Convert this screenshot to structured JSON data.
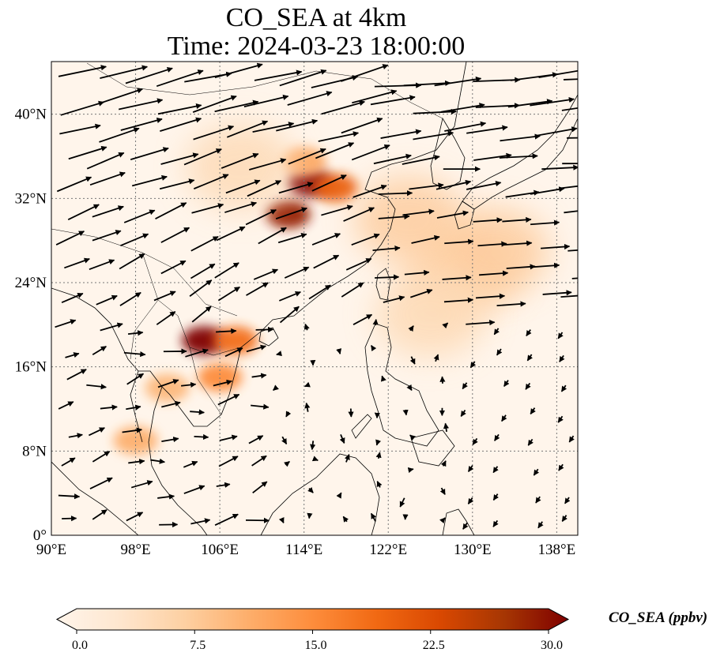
{
  "title": {
    "line1": "CO_SEA at 4km",
    "line2": "Time: 2024-03-23 18:00:00"
  },
  "map": {
    "lon_range": [
      90,
      140
    ],
    "lat_range": [
      0,
      45
    ],
    "lon_ticks": [
      {
        "value": 90,
        "label": "90°E"
      },
      {
        "value": 98,
        "label": "98°E"
      },
      {
        "value": 106,
        "label": "106°E"
      },
      {
        "value": 114,
        "label": "114°E"
      },
      {
        "value": 122,
        "label": "122°E"
      },
      {
        "value": 130,
        "label": "130°E"
      },
      {
        "value": 138,
        "label": "138°E"
      }
    ],
    "lat_ticks": [
      {
        "value": 0,
        "label": "0°"
      },
      {
        "value": 8,
        "label": "8°N"
      },
      {
        "value": 16,
        "label": "16°N"
      },
      {
        "value": 24,
        "label": "24°N"
      },
      {
        "value": 32,
        "label": "32°N"
      },
      {
        "value": 40,
        "label": "40°N"
      }
    ],
    "gridlines": true,
    "background_color": "#fff5eb",
    "plumes": [
      {
        "lon": 114.5,
        "lat": 33.5,
        "value": 30
      },
      {
        "lon": 112.5,
        "lat": 30.5,
        "value": 28
      },
      {
        "lon": 117,
        "lat": 33,
        "value": 20
      },
      {
        "lon": 114,
        "lat": 35.5,
        "value": 12
      },
      {
        "lon": 104.5,
        "lat": 18.5,
        "value": 30
      },
      {
        "lon": 107.5,
        "lat": 18.5,
        "value": 18
      },
      {
        "lon": 106,
        "lat": 15,
        "value": 15
      },
      {
        "lon": 101,
        "lat": 14,
        "value": 10
      },
      {
        "lon": 98,
        "lat": 9,
        "value": 11
      },
      {
        "lon": 129,
        "lat": 25,
        "value": 7
      },
      {
        "lon": 132,
        "lat": 27,
        "value": 8
      },
      {
        "lon": 126,
        "lat": 21,
        "value": 6
      },
      {
        "lon": 124,
        "lat": 30,
        "value": 8
      },
      {
        "lon": 108,
        "lat": 35,
        "value": 6
      }
    ],
    "wind_direction": "predominantly westerly north of 20°N, weak and variable over the South China Sea"
  },
  "colorbar": {
    "min": 0,
    "max": 30,
    "ticks": [
      "0.0",
      "7.5",
      "15.0",
      "22.5",
      "30.0"
    ],
    "label": "CO_SEA (ppbv)",
    "colormap": [
      "#fff5eb",
      "#fee6ce",
      "#fdd0a2",
      "#fdae6b",
      "#fd8d3c",
      "#f16913",
      "#d94801",
      "#a63603",
      "#7f0000"
    ],
    "extend": "both"
  }
}
